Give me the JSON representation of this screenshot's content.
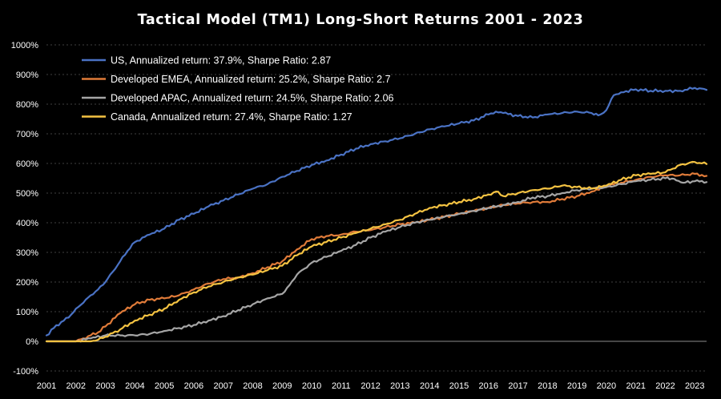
{
  "chart_data": {
    "type": "line",
    "title": "Tactical Model (TM1) Long-Short Returns 2001 - 2023",
    "xlabel": "",
    "ylabel": "",
    "xlim": [
      2001.0,
      2023.4
    ],
    "ylim": [
      -100,
      1000
    ],
    "y_ticks": [
      "-100%",
      "0%",
      "100%",
      "200%",
      "300%",
      "400%",
      "500%",
      "600%",
      "700%",
      "800%",
      "900%",
      "1000%"
    ],
    "y_tick_values": [
      -100,
      0,
      100,
      200,
      300,
      400,
      500,
      600,
      700,
      800,
      900,
      1000
    ],
    "x_ticks": [
      "2001",
      "2002",
      "2003",
      "2004",
      "2005",
      "2006",
      "2007",
      "2008",
      "2009",
      "2010",
      "2011",
      "2012",
      "2013",
      "2014",
      "2015",
      "2016",
      "2017",
      "2018",
      "2019",
      "2020",
      "2021",
      "2022",
      "2023"
    ],
    "x_tick_values": [
      2001,
      2002,
      2003,
      2004,
      2005,
      2006,
      2007,
      2008,
      2009,
      2010,
      2011,
      2012,
      2013,
      2014,
      2015,
      2016,
      2017,
      2018,
      2019,
      2020,
      2021,
      2022,
      2023
    ],
    "grid": true,
    "legend_position": "top-left",
    "series": [
      {
        "name": "US, Annualized return: 37.9%, Sharpe Ratio: 2.87",
        "color": "#4a72c4",
        "x": [
          2001.0,
          2001.25,
          2001.5,
          2001.75,
          2002.0,
          2002.25,
          2002.5,
          2002.75,
          2003.0,
          2003.25,
          2003.5,
          2003.75,
          2004.0,
          2004.5,
          2005.0,
          2005.5,
          2006.0,
          2006.5,
          2007.0,
          2007.5,
          2008.0,
          2008.5,
          2009.0,
          2009.5,
          2010.0,
          2010.5,
          2011.0,
          2011.5,
          2012.0,
          2012.5,
          2013.0,
          2013.5,
          2014.0,
          2014.5,
          2015.0,
          2015.5,
          2016.0,
          2016.25,
          2016.5,
          2017.0,
          2017.5,
          2018.0,
          2018.5,
          2019.0,
          2019.5,
          2019.8,
          2020.0,
          2020.25,
          2020.5,
          2021.0,
          2021.5,
          2022.0,
          2022.5,
          2023.0,
          2023.4
        ],
        "y": [
          20,
          45,
          65,
          80,
          110,
          130,
          155,
          175,
          200,
          235,
          270,
          305,
          335,
          360,
          380,
          410,
          430,
          455,
          475,
          495,
          515,
          530,
          555,
          575,
          595,
          610,
          630,
          650,
          665,
          675,
          685,
          700,
          715,
          725,
          735,
          745,
          765,
          775,
          770,
          760,
          755,
          765,
          770,
          775,
          770,
          765,
          780,
          830,
          840,
          850,
          845,
          845,
          845,
          855,
          848
        ]
      },
      {
        "name": "Developed EMEA, Annualized return: 25.2%, Sharpe Ratio: 2.7",
        "color": "#e07b39",
        "x": [
          2001.0,
          2002.0,
          2002.25,
          2002.5,
          2002.75,
          2003.0,
          2003.5,
          2004.0,
          2004.5,
          2005.0,
          2005.5,
          2006.0,
          2006.5,
          2007.0,
          2007.5,
          2008.0,
          2008.5,
          2009.0,
          2009.5,
          2010.0,
          2010.5,
          2011.0,
          2011.5,
          2012.0,
          2012.5,
          2013.0,
          2013.5,
          2014.0,
          2014.5,
          2015.0,
          2015.5,
          2016.0,
          2016.5,
          2017.0,
          2017.5,
          2018.0,
          2018.5,
          2019.0,
          2019.5,
          2020.0,
          2020.5,
          2021.0,
          2021.5,
          2022.0,
          2022.5,
          2023.0,
          2023.4
        ],
        "y": [
          0,
          0,
          10,
          20,
          30,
          50,
          95,
          125,
          140,
          145,
          155,
          175,
          195,
          210,
          215,
          230,
          250,
          270,
          310,
          345,
          355,
          360,
          370,
          375,
          385,
          395,
          400,
          410,
          420,
          430,
          440,
          450,
          460,
          465,
          470,
          470,
          480,
          490,
          505,
          525,
          535,
          545,
          555,
          560,
          560,
          565,
          558
        ]
      },
      {
        "name": "Developed APAC, Annualized return: 24.5%, Sharpe Ratio: 2.06",
        "color": "#a6a6a6",
        "x": [
          2001.0,
          2002.0,
          2002.5,
          2003.0,
          2003.5,
          2004.0,
          2004.5,
          2005.0,
          2005.5,
          2006.0,
          2006.5,
          2007.0,
          2007.5,
          2008.0,
          2008.5,
          2009.0,
          2009.25,
          2009.5,
          2010.0,
          2010.5,
          2011.0,
          2011.5,
          2012.0,
          2012.5,
          2013.0,
          2013.5,
          2014.0,
          2014.5,
          2015.0,
          2015.5,
          2016.0,
          2016.5,
          2017.0,
          2017.5,
          2018.0,
          2018.5,
          2019.0,
          2019.5,
          2020.0,
          2020.5,
          2021.0,
          2021.5,
          2022.0,
          2022.3,
          2022.6,
          2023.0,
          2023.4
        ],
        "y": [
          0,
          0,
          10,
          20,
          20,
          20,
          25,
          35,
          45,
          55,
          70,
          85,
          105,
          125,
          145,
          160,
          190,
          225,
          265,
          285,
          305,
          325,
          350,
          370,
          385,
          400,
          410,
          420,
          430,
          440,
          450,
          460,
          470,
          485,
          490,
          500,
          510,
          515,
          520,
          530,
          540,
          545,
          550,
          548,
          535,
          540,
          537
        ]
      },
      {
        "name": "Canada, Annualized return: 27.4%, Sharpe Ratio: 1.27",
        "color": "#f5c342",
        "x": [
          2001.0,
          2002.5,
          2002.75,
          2003.0,
          2003.5,
          2004.0,
          2004.5,
          2005.0,
          2005.5,
          2006.0,
          2006.5,
          2007.0,
          2007.5,
          2008.0,
          2008.5,
          2009.0,
          2009.5,
          2010.0,
          2010.5,
          2011.0,
          2011.5,
          2012.0,
          2012.5,
          2013.0,
          2013.5,
          2014.0,
          2014.5,
          2015.0,
          2015.5,
          2016.0,
          2016.25,
          2016.5,
          2017.0,
          2017.5,
          2018.0,
          2018.5,
          2019.0,
          2019.5,
          2020.0,
          2020.5,
          2021.0,
          2021.5,
          2022.0,
          2022.5,
          2023.0,
          2023.4
        ],
        "y": [
          0,
          0,
          5,
          15,
          40,
          70,
          90,
          110,
          140,
          165,
          185,
          200,
          215,
          225,
          240,
          255,
          290,
          320,
          335,
          350,
          365,
          380,
          395,
          410,
          430,
          450,
          460,
          470,
          480,
          495,
          505,
          490,
          500,
          510,
          515,
          525,
          520,
          515,
          525,
          545,
          560,
          565,
          570,
          595,
          605,
          598
        ]
      }
    ]
  }
}
